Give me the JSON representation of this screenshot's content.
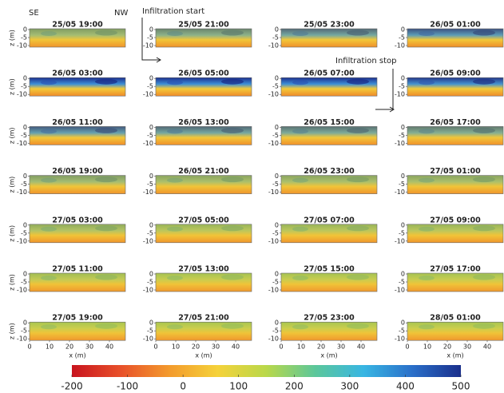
{
  "chart_data": {
    "type": "heatmap",
    "annotations": {
      "left": "SE",
      "right": "NW",
      "start": "Infiltration start",
      "stop": "Infiltration stop"
    },
    "panels": [
      "25/05 19:00",
      "25/05 21:00",
      "25/05 23:00",
      "26/05 01:00",
      "26/05 03:00",
      "26/05 05:00",
      "26/05 07:00",
      "26/05 09:00",
      "26/05 11:00",
      "26/05 13:00",
      "26/05 15:00",
      "26/05 17:00",
      "26/05 19:00",
      "26/05 21:00",
      "26/05 23:00",
      "27/05 01:00",
      "27/05 03:00",
      "27/05 05:00",
      "27/05 07:00",
      "27/05 09:00",
      "27/05 11:00",
      "27/05 13:00",
      "27/05 15:00",
      "27/05 17:00",
      "27/05 19:00",
      "27/05 21:00",
      "27/05 23:00",
      "28/05 01:00"
    ],
    "xlabel": "x (m)",
    "xlim": [
      0,
      48
    ],
    "xticks": [
      0,
      10,
      20,
      30,
      40
    ],
    "ylabel": "z (m)",
    "ylim": [
      -11,
      0.5
    ],
    "yticks": [
      0,
      -5,
      -10
    ],
    "colorbar": {
      "lim": [
        -200,
        500
      ],
      "ticks": [
        -200,
        -100,
        0,
        100,
        200,
        300,
        400,
        500
      ],
      "colors": [
        "#c8141e",
        "#e8502a",
        "#f39a2c",
        "#f5d23a",
        "#b9d84a",
        "#5cc79a",
        "#38b6e3",
        "#2a6fc9",
        "#1a2f8c"
      ]
    }
  }
}
